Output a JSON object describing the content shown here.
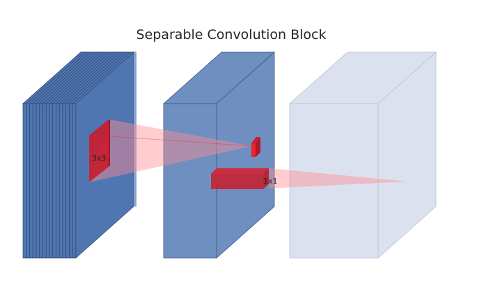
{
  "title": "Separable Convolution Block",
  "colors": {
    "block_face": "#5076b1",
    "block_edge": "#2f4670",
    "middle_face": "#6e8fc0",
    "output_face": "#dbe1ee",
    "output_edge": "#b8c1d6",
    "kernel": "#e0202b",
    "projection": "#ff9aa0"
  },
  "kernels": {
    "depthwise_label": "3x3",
    "pointwise_label": "1x1"
  },
  "layers": {
    "input_channels": 16
  }
}
